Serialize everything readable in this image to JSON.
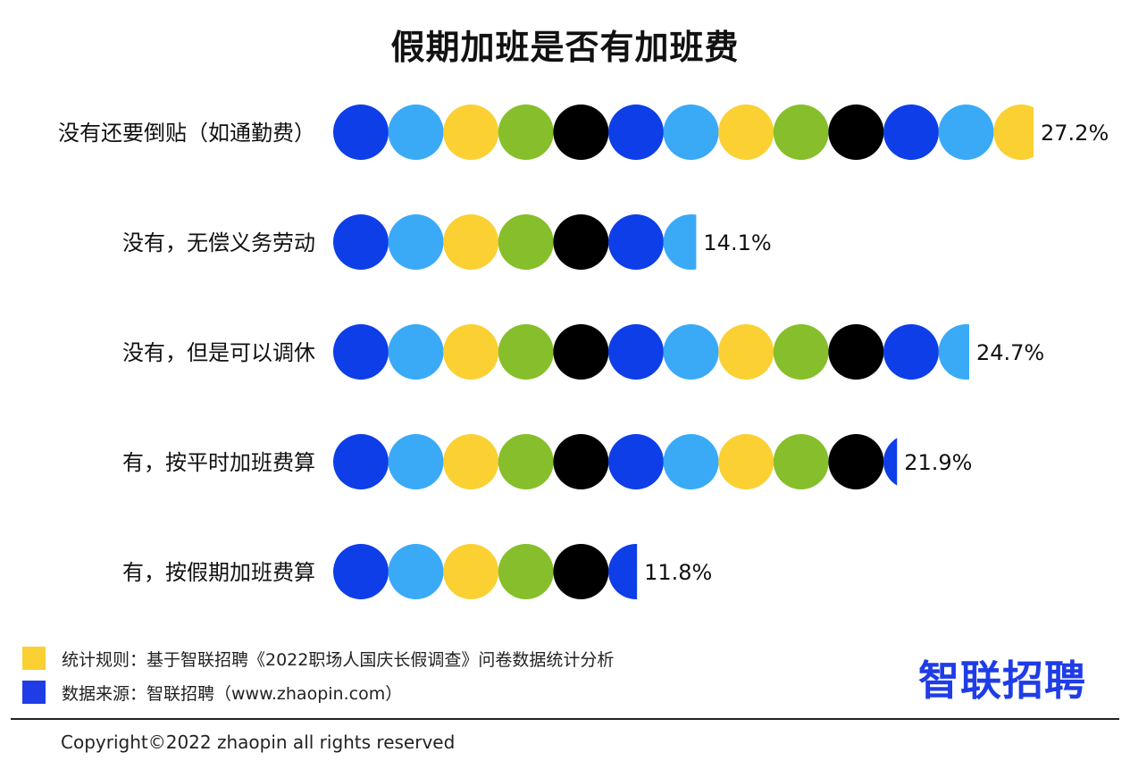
{
  "chart_data": {
    "type": "bar",
    "title": "假期加班是否有加班费",
    "categories": [
      "没有还要倒贴（如通勤费）",
      "没有，无偿义务劳动",
      "没有，但是可以调休",
      "有，按平时加班费算",
      "有，按假期加班费算"
    ],
    "values": [
      27.2,
      14.1,
      24.7,
      21.9,
      11.8
    ],
    "value_labels": [
      "27.2%",
      "14.1%",
      "24.7%",
      "21.9%",
      "11.8%"
    ],
    "unit": "%",
    "dot_colors": [
      "#0d3ee8",
      "#3aaaf7",
      "#fbd033",
      "#86bf2b",
      "#000000"
    ],
    "grid": false,
    "legend": "none"
  },
  "footer": {
    "rule_text": "统计规则：基于智联招聘《2022职场人国庆长假调查》问卷数据统计分析",
    "rule_color": "#fbd033",
    "source_text": "数据来源：智联招聘（www.zhaopin.com）",
    "source_color": "#1f3de6",
    "logo": "智联招聘",
    "copyright": "Copyright©2022 zhaopin all rights reserved"
  }
}
